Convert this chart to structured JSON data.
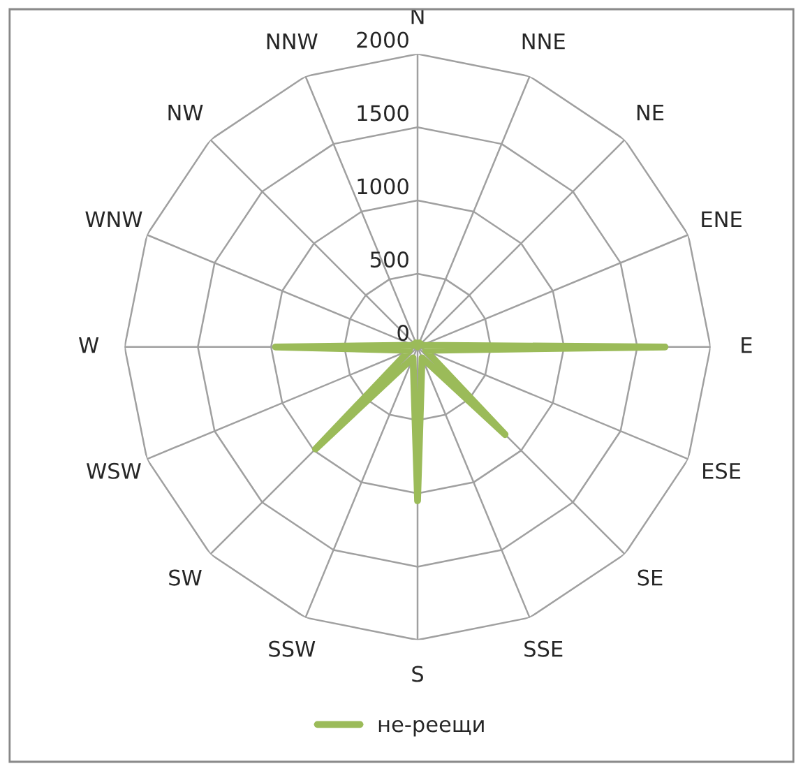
{
  "chart_data": {
    "type": "radar",
    "categories": [
      "N",
      "NNE",
      "NE",
      "ENE",
      "E",
      "ESE",
      "SE",
      "SSE",
      "S",
      "SSW",
      "SW",
      "WSW",
      "W",
      "WNW",
      "NW",
      "NNW"
    ],
    "series": [
      {
        "name": "не-реещи",
        "color": "#9bbb59",
        "values": [
          0,
          30,
          30,
          30,
          1690,
          60,
          845,
          80,
          1050,
          80,
          985,
          60,
          970,
          30,
          30,
          30
        ]
      }
    ],
    "ylim": [
      0,
      2000
    ],
    "yticks": [
      0,
      500,
      1000,
      1500,
      2000
    ],
    "grid": true,
    "legend": "bottom",
    "line_style": "solid",
    "marker": "none"
  }
}
